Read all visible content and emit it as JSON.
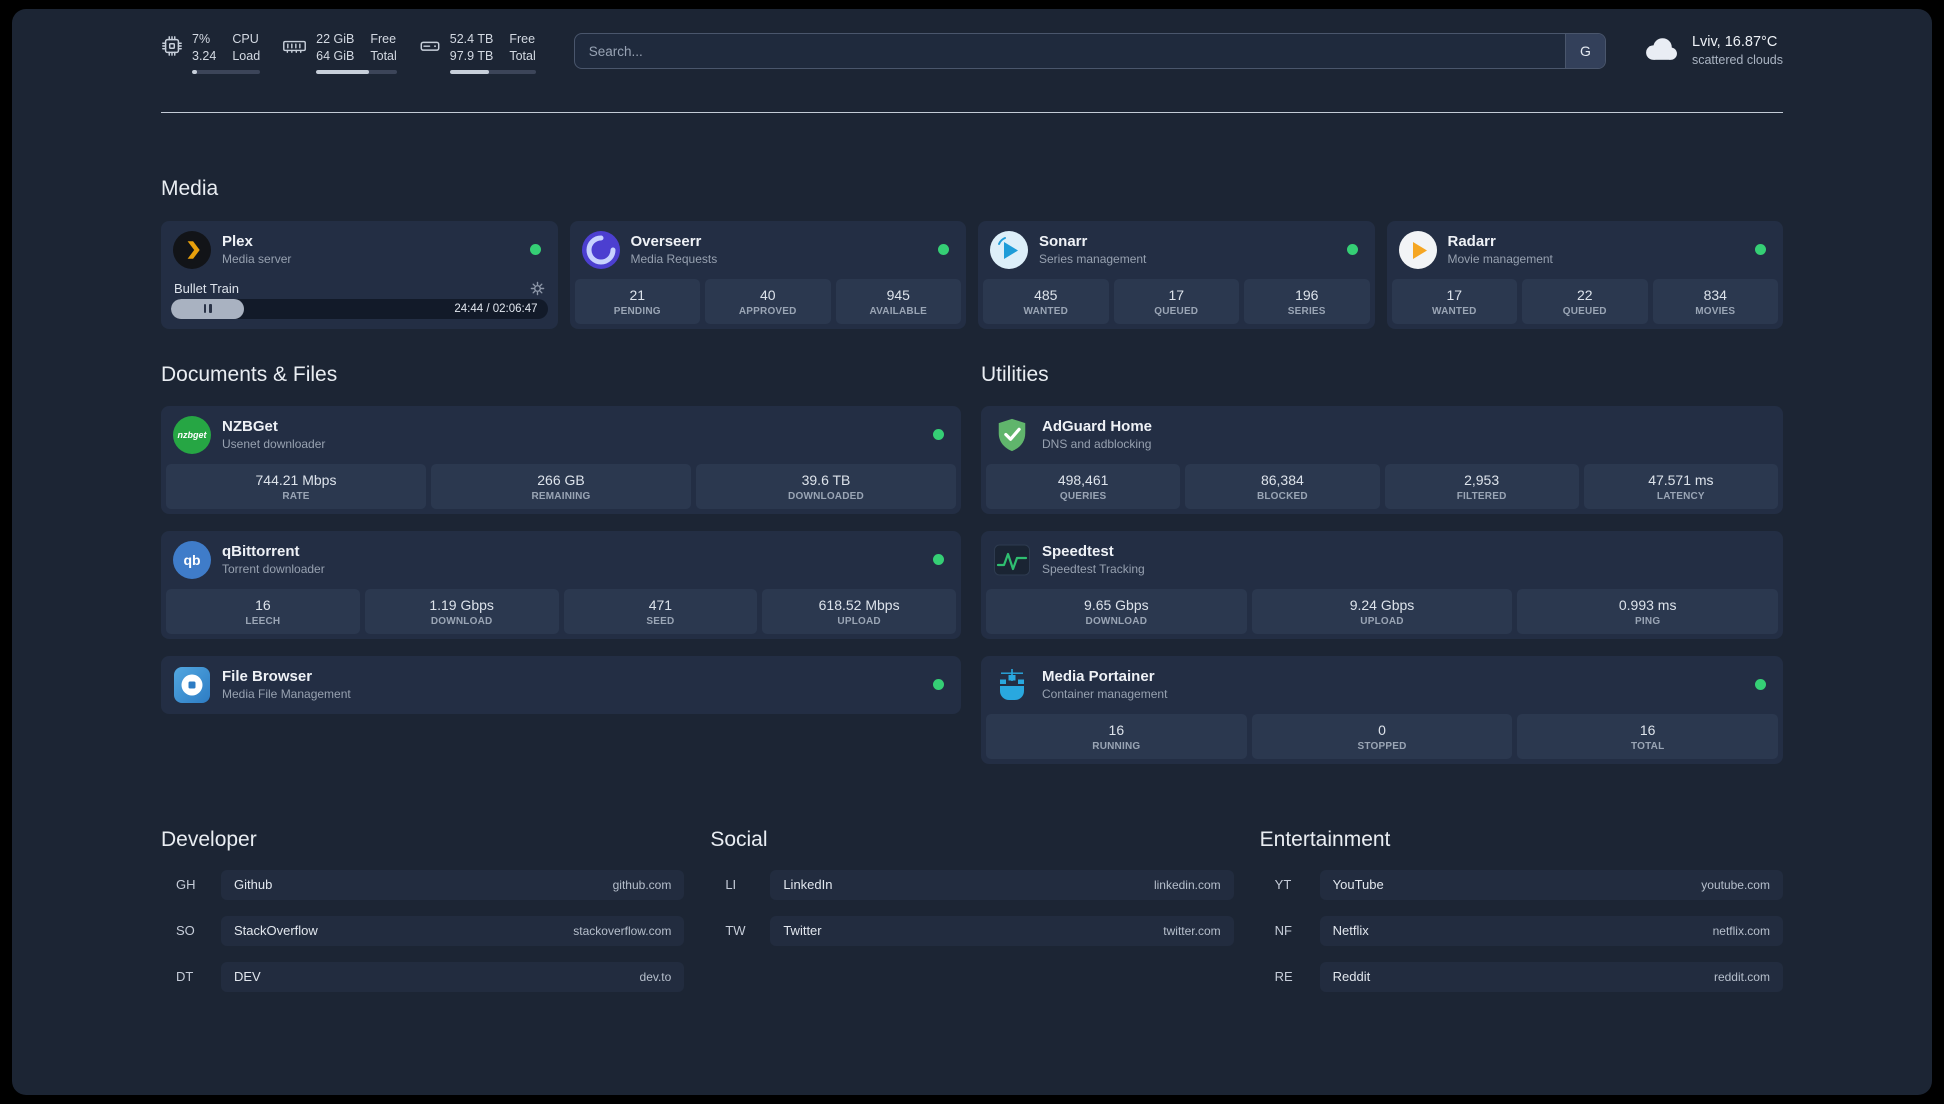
{
  "colors": {
    "background": "#1c2534",
    "card": "#232e44",
    "stat_tile": "#2b384f",
    "status_online_green": "#35cf75",
    "plex_gold": "#e8a00c",
    "overseerr_purple": "#4c3fd0",
    "sonarr_blue": "#1e9cd8",
    "radarr_orange": "#f5a623",
    "nzbget_green": "#26a644",
    "qbittorrent_blue": "#3f7cc9",
    "filebrowser_blue": "#2d7cc4",
    "adguard_green": "#60b56c",
    "speedtest_green": "#2fbf71",
    "portainer_blue": "#29a8df"
  },
  "icons": {
    "cpu": "cpu-chip-icon",
    "memory": "memory-module-icon",
    "disk": "hard-disk-icon",
    "weather": "cloud-icon",
    "search_provider": "google-g-button",
    "plex": "plex-chevron-icon",
    "overseerr": "overseerr-swirl-icon",
    "sonarr": "sonarr-arrow-icon",
    "radarr": "radarr-play-icon",
    "nzbget": "nzbget-logo-icon",
    "qbittorrent": "qbittorrent-logo-icon",
    "filebrowser": "filebrowser-logo-icon",
    "adguard": "adguard-shield-icon",
    "speedtest": "speedtest-graph-icon",
    "portainer": "portainer-crane-icon",
    "settings": "gear-icon",
    "pause": "pause-icon",
    "status": "status-dot"
  },
  "topbar": {
    "cpu": {
      "percent": "7%",
      "load": "3.24",
      "label_line1": "CPU",
      "label_line2": "Load",
      "bar_percent": 7
    },
    "memory": {
      "free": "22 GiB",
      "total": "64 GiB",
      "label_line1": "Free",
      "label_line2": "Total",
      "bar_percent": 66
    },
    "disk": {
      "free": "52.4 TB",
      "total": "97.9 TB",
      "label_line1": "Free",
      "label_line2": "Total",
      "bar_percent": 46
    },
    "search": {
      "placeholder": "Search...",
      "provider_button": "G"
    },
    "weather": {
      "location": "Lviv, 16.87°C",
      "condition": "scattered clouds"
    }
  },
  "sections": {
    "media": {
      "title": "Media",
      "plex": {
        "name": "Plex",
        "subtitle": "Media server",
        "status": "online",
        "now_playing": "Bullet Train",
        "time": "24:44 / 02:06:47",
        "progress_percent": 19.5
      },
      "cards": [
        {
          "name": "Overseerr",
          "subtitle": "Media Requests",
          "status": "online",
          "stats": [
            {
              "value": "21",
              "label": "PENDING"
            },
            {
              "value": "40",
              "label": "APPROVED"
            },
            {
              "value": "945",
              "label": "AVAILABLE"
            }
          ]
        },
        {
          "name": "Sonarr",
          "subtitle": "Series management",
          "status": "online",
          "stats": [
            {
              "value": "485",
              "label": "WANTED"
            },
            {
              "value": "17",
              "label": "QUEUED"
            },
            {
              "value": "196",
              "label": "SERIES"
            }
          ]
        },
        {
          "name": "Radarr",
          "subtitle": "Movie management",
          "status": "online",
          "stats": [
            {
              "value": "17",
              "label": "WANTED"
            },
            {
              "value": "22",
              "label": "QUEUED"
            },
            {
              "value": "834",
              "label": "MOVIES"
            }
          ]
        }
      ]
    },
    "documents": {
      "title": "Documents & Files",
      "cards": [
        {
          "name": "NZBGet",
          "subtitle": "Usenet downloader",
          "status": "online",
          "stats": [
            {
              "value": "744.21 Mbps",
              "label": "RATE"
            },
            {
              "value": "266 GB",
              "label": "REMAINING"
            },
            {
              "value": "39.6 TB",
              "label": "DOWNLOADED"
            }
          ]
        },
        {
          "name": "qBittorrent",
          "subtitle": "Torrent downloader",
          "status": "online",
          "stats": [
            {
              "value": "16",
              "label": "LEECH"
            },
            {
              "value": "1.19 Gbps",
              "label": "DOWNLOAD"
            },
            {
              "value": "471",
              "label": "SEED"
            },
            {
              "value": "618.52 Mbps",
              "label": "UPLOAD"
            }
          ]
        },
        {
          "name": "File Browser",
          "subtitle": "Media File Management",
          "status": "online",
          "stats": []
        }
      ]
    },
    "utilities": {
      "title": "Utilities",
      "cards": [
        {
          "name": "AdGuard Home",
          "subtitle": "DNS and adblocking",
          "stats": [
            {
              "value": "498,461",
              "label": "QUERIES"
            },
            {
              "value": "86,384",
              "label": "BLOCKED"
            },
            {
              "value": "2,953",
              "label": "FILTERED"
            },
            {
              "value": "47.571 ms",
              "label": "LATENCY"
            }
          ]
        },
        {
          "name": "Speedtest",
          "subtitle": "Speedtest Tracking",
          "stats": [
            {
              "value": "9.65 Gbps",
              "label": "DOWNLOAD"
            },
            {
              "value": "9.24 Gbps",
              "label": "UPLOAD"
            },
            {
              "value": "0.993 ms",
              "label": "PING"
            }
          ]
        },
        {
          "name": "Media Portainer",
          "subtitle": "Container management",
          "status": "online",
          "stats": [
            {
              "value": "16",
              "label": "RUNNING"
            },
            {
              "value": "0",
              "label": "STOPPED"
            },
            {
              "value": "16",
              "label": "TOTAL"
            }
          ]
        }
      ]
    }
  },
  "bookmarks": {
    "groups": [
      {
        "title": "Developer",
        "items": [
          {
            "abbr": "GH",
            "name": "Github",
            "url": "github.com"
          },
          {
            "abbr": "SO",
            "name": "StackOverflow",
            "url": "stackoverflow.com"
          },
          {
            "abbr": "DT",
            "name": "DEV",
            "url": "dev.to"
          }
        ]
      },
      {
        "title": "Social",
        "items": [
          {
            "abbr": "LI",
            "name": "LinkedIn",
            "url": "linkedin.com"
          },
          {
            "abbr": "TW",
            "name": "Twitter",
            "url": "twitter.com"
          }
        ]
      },
      {
        "title": "Entertainment",
        "items": [
          {
            "abbr": "YT",
            "name": "YouTube",
            "url": "youtube.com"
          },
          {
            "abbr": "NF",
            "name": "Netflix",
            "url": "netflix.com"
          },
          {
            "abbr": "RE",
            "name": "Reddit",
            "url": "reddit.com"
          }
        ]
      }
    ]
  }
}
